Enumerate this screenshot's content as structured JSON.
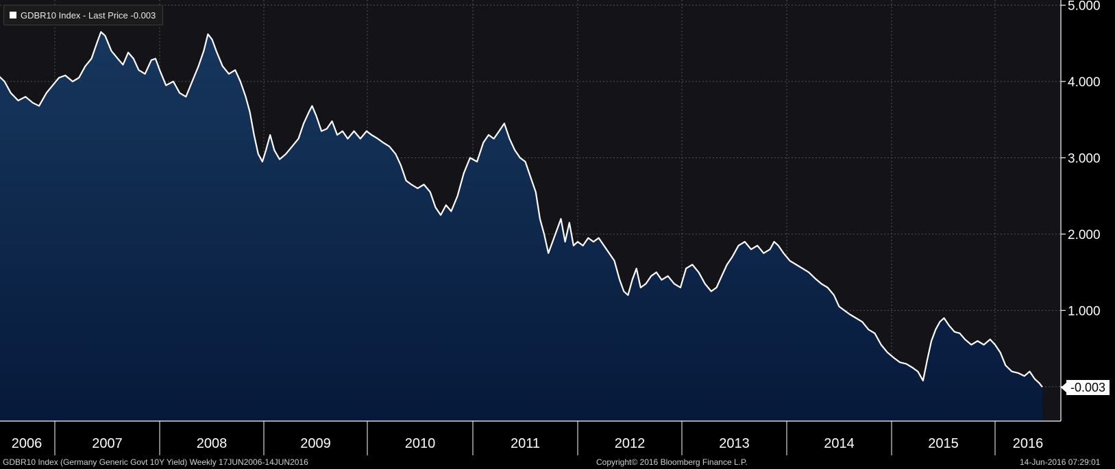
{
  "legend": {
    "label": "GDBR10 Index - Last Price -0.003"
  },
  "footer": {
    "left": "GDBR10 Index (Germany Generic Govt 10Y Yield)  Weekly 17JUN2006-14JUN2016",
    "center": "Copyright© 2016 Bloomberg Finance L.P.",
    "right": "14-Jun-2016 07:29:01"
  },
  "last_value_label": "-0.003",
  "colors": {
    "background": "#000000",
    "plot_top": "#141418",
    "area_top": "#17375e",
    "area_bottom": "#06193a",
    "line": "#ffffff",
    "grid": "#555555",
    "text": "#ffffff"
  },
  "chart_data": {
    "type": "area",
    "title": "",
    "xlabel": "",
    "ylabel": "",
    "ylim": [
      -0.45,
      5.05
    ],
    "y_ticks": [
      "5.000",
      "4.000",
      "3.000",
      "2.000",
      "1.000"
    ],
    "x_tick_labels": [
      "2006",
      "2007",
      "2008",
      "2009",
      "2010",
      "2011",
      "2012",
      "2013",
      "2014",
      "2015",
      "2016"
    ],
    "x_range": [
      2006.46,
      2016.45
    ],
    "grid": true,
    "legend_position": "top-left",
    "series": [
      {
        "name": "GDBR10 Index - Last Price",
        "last": -0.003,
        "points": [
          [
            2006.46,
            4.08
          ],
          [
            2006.52,
            4.0
          ],
          [
            2006.58,
            3.85
          ],
          [
            2006.65,
            3.75
          ],
          [
            2006.72,
            3.8
          ],
          [
            2006.79,
            3.72
          ],
          [
            2006.85,
            3.68
          ],
          [
            2006.92,
            3.85
          ],
          [
            2006.98,
            3.95
          ],
          [
            2007.04,
            4.05
          ],
          [
            2007.1,
            4.08
          ],
          [
            2007.17,
            4.0
          ],
          [
            2007.23,
            4.05
          ],
          [
            2007.29,
            4.2
          ],
          [
            2007.35,
            4.3
          ],
          [
            2007.4,
            4.5
          ],
          [
            2007.44,
            4.65
          ],
          [
            2007.48,
            4.6
          ],
          [
            2007.54,
            4.4
          ],
          [
            2007.6,
            4.3
          ],
          [
            2007.65,
            4.22
          ],
          [
            2007.7,
            4.38
          ],
          [
            2007.75,
            4.3
          ],
          [
            2007.8,
            4.15
          ],
          [
            2007.86,
            4.1
          ],
          [
            2007.92,
            4.28
          ],
          [
            2007.96,
            4.3
          ],
          [
            2008.0,
            4.15
          ],
          [
            2008.06,
            3.95
          ],
          [
            2008.13,
            4.0
          ],
          [
            2008.19,
            3.85
          ],
          [
            2008.25,
            3.8
          ],
          [
            2008.31,
            4.0
          ],
          [
            2008.37,
            4.2
          ],
          [
            2008.42,
            4.4
          ],
          [
            2008.46,
            4.62
          ],
          [
            2008.5,
            4.55
          ],
          [
            2008.54,
            4.4
          ],
          [
            2008.6,
            4.2
          ],
          [
            2008.66,
            4.1
          ],
          [
            2008.72,
            4.15
          ],
          [
            2008.77,
            4.0
          ],
          [
            2008.82,
            3.8
          ],
          [
            2008.86,
            3.6
          ],
          [
            2008.9,
            3.3
          ],
          [
            2008.94,
            3.05
          ],
          [
            2008.98,
            2.95
          ],
          [
            2009.02,
            3.1
          ],
          [
            2009.06,
            3.3
          ],
          [
            2009.1,
            3.1
          ],
          [
            2009.15,
            2.98
          ],
          [
            2009.21,
            3.05
          ],
          [
            2009.27,
            3.15
          ],
          [
            2009.33,
            3.25
          ],
          [
            2009.38,
            3.45
          ],
          [
            2009.43,
            3.6
          ],
          [
            2009.46,
            3.68
          ],
          [
            2009.5,
            3.55
          ],
          [
            2009.55,
            3.35
          ],
          [
            2009.6,
            3.38
          ],
          [
            2009.65,
            3.48
          ],
          [
            2009.7,
            3.3
          ],
          [
            2009.75,
            3.35
          ],
          [
            2009.8,
            3.25
          ],
          [
            2009.86,
            3.35
          ],
          [
            2009.92,
            3.25
          ],
          [
            2009.98,
            3.35
          ],
          [
            2010.04,
            3.3
          ],
          [
            2010.1,
            3.25
          ],
          [
            2010.15,
            3.2
          ],
          [
            2010.21,
            3.15
          ],
          [
            2010.27,
            3.05
          ],
          [
            2010.32,
            2.9
          ],
          [
            2010.37,
            2.7
          ],
          [
            2010.42,
            2.65
          ],
          [
            2010.48,
            2.6
          ],
          [
            2010.54,
            2.65
          ],
          [
            2010.6,
            2.55
          ],
          [
            2010.65,
            2.35
          ],
          [
            2010.7,
            2.25
          ],
          [
            2010.75,
            2.38
          ],
          [
            2010.8,
            2.3
          ],
          [
            2010.86,
            2.5
          ],
          [
            2010.92,
            2.8
          ],
          [
            2010.98,
            3.0
          ],
          [
            2011.04,
            2.95
          ],
          [
            2011.1,
            3.2
          ],
          [
            2011.15,
            3.3
          ],
          [
            2011.2,
            3.25
          ],
          [
            2011.25,
            3.35
          ],
          [
            2011.3,
            3.45
          ],
          [
            2011.35,
            3.25
          ],
          [
            2011.4,
            3.1
          ],
          [
            2011.45,
            3.0
          ],
          [
            2011.5,
            2.95
          ],
          [
            2011.55,
            2.75
          ],
          [
            2011.6,
            2.55
          ],
          [
            2011.64,
            2.2
          ],
          [
            2011.68,
            2.0
          ],
          [
            2011.72,
            1.75
          ],
          [
            2011.76,
            1.9
          ],
          [
            2011.8,
            2.05
          ],
          [
            2011.84,
            2.2
          ],
          [
            2011.88,
            1.9
          ],
          [
            2011.92,
            2.15
          ],
          [
            2011.96,
            1.85
          ],
          [
            2012.0,
            1.9
          ],
          [
            2012.05,
            1.85
          ],
          [
            2012.1,
            1.95
          ],
          [
            2012.15,
            1.9
          ],
          [
            2012.2,
            1.95
          ],
          [
            2012.25,
            1.85
          ],
          [
            2012.3,
            1.75
          ],
          [
            2012.35,
            1.65
          ],
          [
            2012.4,
            1.4
          ],
          [
            2012.44,
            1.25
          ],
          [
            2012.48,
            1.2
          ],
          [
            2012.52,
            1.4
          ],
          [
            2012.56,
            1.55
          ],
          [
            2012.6,
            1.3
          ],
          [
            2012.65,
            1.35
          ],
          [
            2012.7,
            1.45
          ],
          [
            2012.75,
            1.5
          ],
          [
            2012.8,
            1.4
          ],
          [
            2012.86,
            1.45
          ],
          [
            2012.92,
            1.35
          ],
          [
            2012.98,
            1.3
          ],
          [
            2013.04,
            1.55
          ],
          [
            2013.1,
            1.6
          ],
          [
            2013.16,
            1.5
          ],
          [
            2013.22,
            1.35
          ],
          [
            2013.28,
            1.25
          ],
          [
            2013.33,
            1.3
          ],
          [
            2013.38,
            1.45
          ],
          [
            2013.43,
            1.6
          ],
          [
            2013.48,
            1.7
          ],
          [
            2013.54,
            1.85
          ],
          [
            2013.6,
            1.9
          ],
          [
            2013.66,
            1.8
          ],
          [
            2013.72,
            1.85
          ],
          [
            2013.78,
            1.75
          ],
          [
            2013.84,
            1.8
          ],
          [
            2013.88,
            1.9
          ],
          [
            2013.92,
            1.85
          ],
          [
            2013.97,
            1.75
          ],
          [
            2014.03,
            1.65
          ],
          [
            2014.09,
            1.6
          ],
          [
            2014.15,
            1.55
          ],
          [
            2014.21,
            1.5
          ],
          [
            2014.27,
            1.42
          ],
          [
            2014.33,
            1.35
          ],
          [
            2014.39,
            1.3
          ],
          [
            2014.45,
            1.2
          ],
          [
            2014.5,
            1.05
          ],
          [
            2014.55,
            1.0
          ],
          [
            2014.6,
            0.95
          ],
          [
            2014.66,
            0.9
          ],
          [
            2014.72,
            0.85
          ],
          [
            2014.78,
            0.75
          ],
          [
            2014.84,
            0.7
          ],
          [
            2014.9,
            0.55
          ],
          [
            2014.96,
            0.45
          ],
          [
            2015.02,
            0.38
          ],
          [
            2015.08,
            0.32
          ],
          [
            2015.14,
            0.3
          ],
          [
            2015.2,
            0.25
          ],
          [
            2015.25,
            0.2
          ],
          [
            2015.3,
            0.08
          ],
          [
            2015.34,
            0.35
          ],
          [
            2015.38,
            0.6
          ],
          [
            2015.42,
            0.75
          ],
          [
            2015.46,
            0.85
          ],
          [
            2015.5,
            0.9
          ],
          [
            2015.55,
            0.8
          ],
          [
            2015.6,
            0.72
          ],
          [
            2015.65,
            0.7
          ],
          [
            2015.7,
            0.62
          ],
          [
            2015.76,
            0.55
          ],
          [
            2015.82,
            0.6
          ],
          [
            2015.88,
            0.55
          ],
          [
            2015.94,
            0.62
          ],
          [
            2016.0,
            0.55
          ],
          [
            2016.05,
            0.45
          ],
          [
            2016.1,
            0.28
          ],
          [
            2016.16,
            0.2
          ],
          [
            2016.22,
            0.18
          ],
          [
            2016.28,
            0.14
          ],
          [
            2016.33,
            0.2
          ],
          [
            2016.38,
            0.1
          ],
          [
            2016.42,
            0.05
          ],
          [
            2016.45,
            -0.003
          ]
        ]
      }
    ]
  }
}
